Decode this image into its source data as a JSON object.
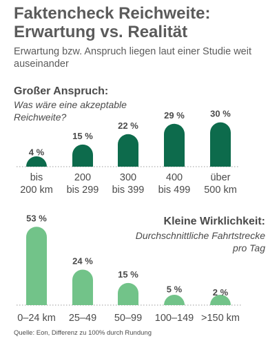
{
  "header": {
    "title": "Faktencheck Reichweite: Erwartung vs. Realität",
    "subtitle": "Erwartung bzw. Anspruch liegen laut einer Studie weit auseinander"
  },
  "colors": {
    "expectation_bar": "#0d6b4c",
    "reality_bar": "#72c389",
    "baseline": "#999999",
    "text": "#4a4a4a"
  },
  "chart_data": [
    {
      "type": "bar",
      "title": "Großer Anspruch:",
      "subtitle": "Was wäre eine akzeptable Reichweite?",
      "categories": [
        "bis 200 km",
        "200 bis 299",
        "300 bis 399",
        "400 bis 499",
        "über 500 km"
      ],
      "category_lines": [
        [
          "bis",
          "200 km"
        ],
        [
          "200",
          "bis 299"
        ],
        [
          "300",
          "bis 399"
        ],
        [
          "400",
          "bis 499"
        ],
        [
          "über",
          "500 km"
        ]
      ],
      "values": [
        4,
        15,
        22,
        29,
        30
      ],
      "data_labels": [
        "4 %",
        "15 %",
        "22 %",
        "29 %",
        "30 %"
      ],
      "unit": "%",
      "ylim": [
        0,
        55
      ]
    },
    {
      "type": "bar",
      "title": "Kleine Wirklichkeit:",
      "subtitle": "Durchschnittliche Fahrtstrecke pro Tag",
      "categories": [
        "0–24 km",
        "25–49",
        "50–99",
        "100–149",
        ">150 km"
      ],
      "category_lines": [
        [
          "0–24 km"
        ],
        [
          "25–49"
        ],
        [
          "50–99"
        ],
        [
          "100–149"
        ],
        [
          ">150 km"
        ]
      ],
      "values": [
        53,
        24,
        15,
        5,
        2
      ],
      "data_labels": [
        "53 %",
        "24 %",
        "15 %",
        "5 %",
        "2 %"
      ],
      "unit": "%",
      "ylim": [
        0,
        55
      ]
    }
  ],
  "footer": {
    "source": "Quelle: Eon, Differenz zu 100% durch Rundung"
  }
}
